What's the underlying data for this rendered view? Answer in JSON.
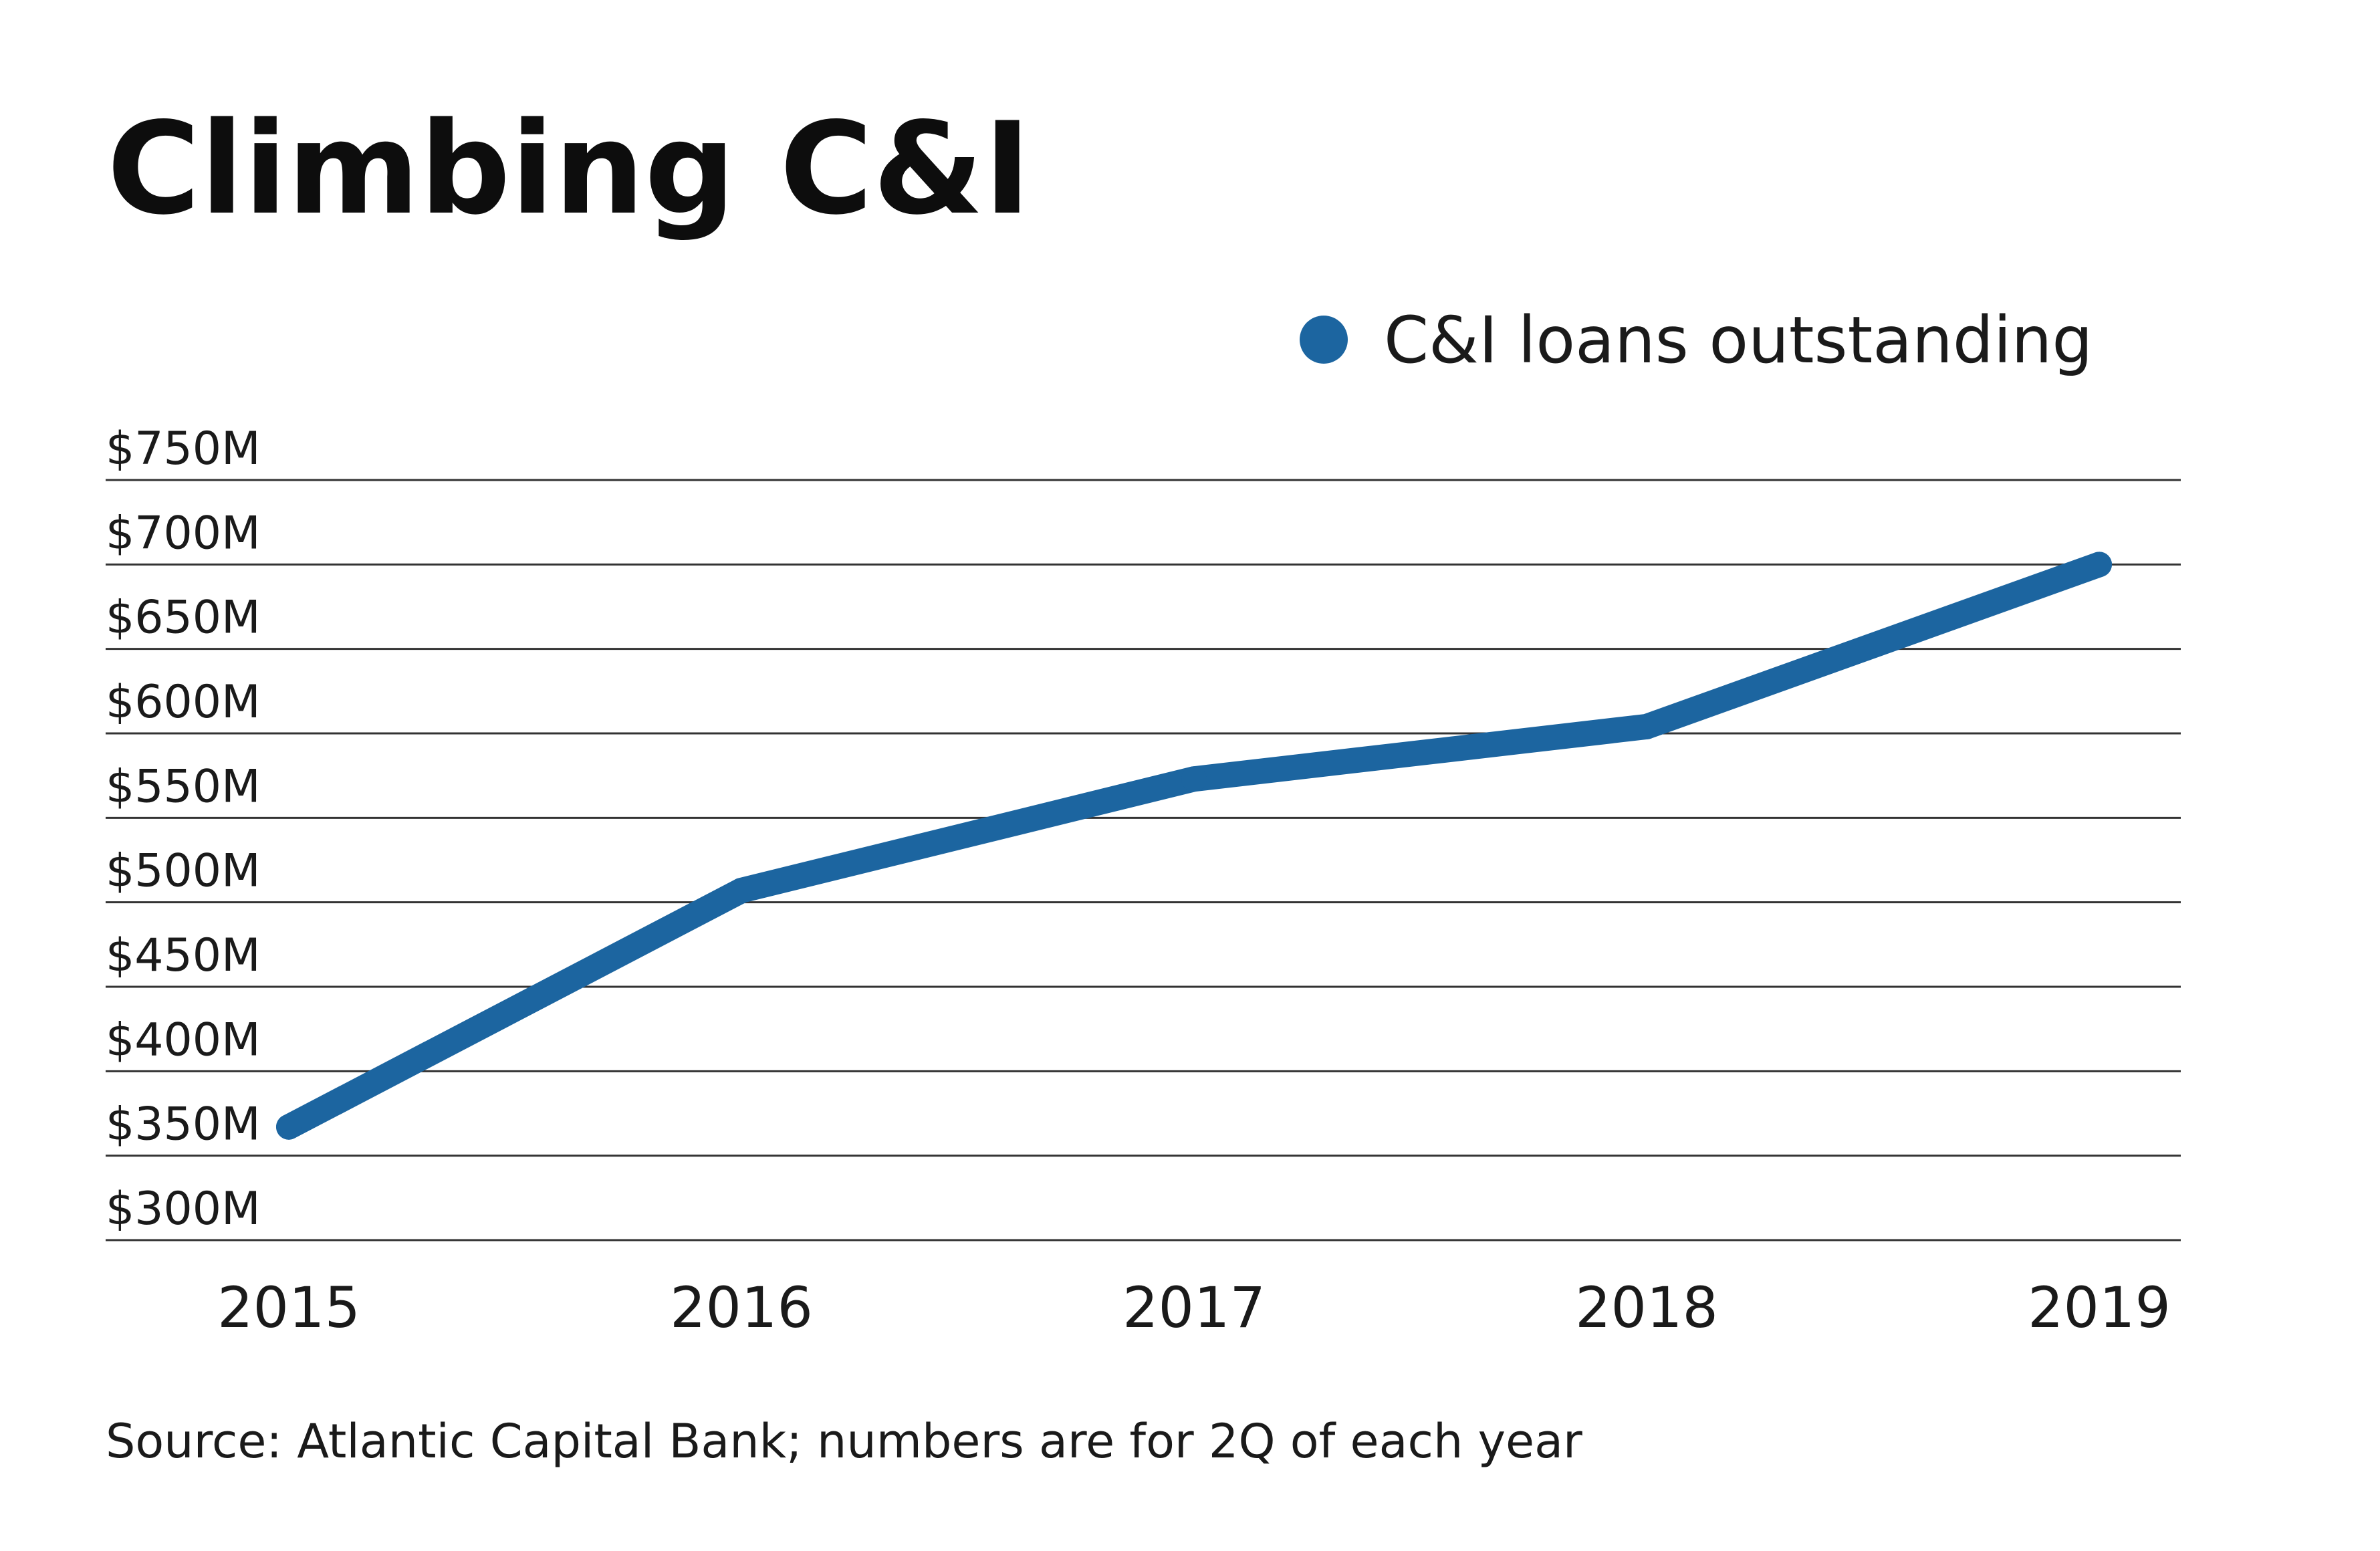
{
  "colors": {
    "series": "#1c65a0",
    "grid": "#333333",
    "text": "#1a1a1a",
    "background": "#ffffff"
  },
  "chart_data": {
    "type": "line",
    "title": "Climbing C&I",
    "source": "Source: Atlantic Capital Bank; numbers are for 2Q of each year",
    "x": [
      "2015",
      "2016",
      "2017",
      "2018",
      "2019"
    ],
    "y_tick_values": [
      300,
      350,
      400,
      450,
      500,
      550,
      600,
      650,
      700,
      750
    ],
    "y_tick_labels": [
      "$300M",
      "$350M",
      "$400M",
      "$450M",
      "$500M",
      "$550M",
      "$600M",
      "$650M",
      "$700M",
      "$750M"
    ],
    "ylim": [
      300,
      750
    ],
    "grid": true,
    "legend_position": "top-right",
    "series": [
      {
        "name": "C&I loans outstanding",
        "values": [
          367,
          507,
          573,
          604,
          700
        ]
      }
    ]
  }
}
